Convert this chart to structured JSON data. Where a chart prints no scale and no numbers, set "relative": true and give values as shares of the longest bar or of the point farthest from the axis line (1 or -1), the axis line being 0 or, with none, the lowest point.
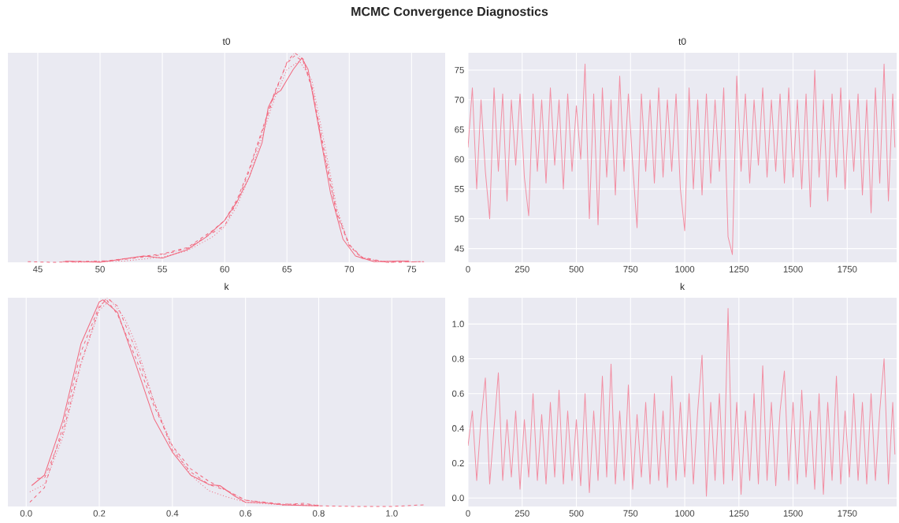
{
  "chart_data": [
    {
      "type": "line",
      "title": "t0",
      "annotations": [
        "MCMC Convergence Diagnostics"
      ],
      "relative": true,
      "grid": "x",
      "xlim": [
        42.6,
        77.7
      ],
      "xticks": [
        45,
        50,
        55,
        60,
        65,
        70,
        75
      ],
      "series": [
        {
          "color": "#f2697f",
          "line_style": "solid",
          "x": [
            47.2,
            50,
            53.5,
            55,
            57,
            58.5,
            60,
            61,
            62,
            63,
            63.5,
            64,
            64.5,
            65,
            65.5,
            66.2,
            66.7,
            67.5,
            68.5,
            69.5,
            70.5,
            72,
            74.8
          ],
          "values": [
            0.006,
            0,
            0.03,
            0.02,
            0.06,
            0.12,
            0.2,
            0.29,
            0.41,
            0.57,
            0.74,
            0.8,
            0.82,
            0.87,
            0.92,
            0.975,
            0.92,
            0.66,
            0.33,
            0.11,
            0.03,
            0.003,
            0.007
          ]
        },
        {
          "color": "#f2697f",
          "line_style": "dashed",
          "x": [
            44.2,
            46,
            50,
            55,
            57,
            59,
            60,
            61,
            62,
            63,
            64,
            65,
            65.6,
            66.3,
            67,
            68,
            69,
            70,
            71,
            73,
            76
          ],
          "values": [
            0.003,
            0,
            0.003,
            0.04,
            0.07,
            0.15,
            0.2,
            0.3,
            0.45,
            0.63,
            0.81,
            0.95,
            0.985,
            0.96,
            0.83,
            0.51,
            0.23,
            0.08,
            0.02,
            0,
            0.003
          ]
        },
        {
          "color": "#f2697f",
          "line_style": "dotted",
          "x": [
            48,
            52,
            55,
            57,
            59,
            60,
            61,
            62,
            63,
            64,
            65,
            66,
            67,
            68,
            69,
            70,
            71,
            72,
            75
          ],
          "values": [
            0,
            0.006,
            0.025,
            0.055,
            0.12,
            0.17,
            0.27,
            0.41,
            0.6,
            0.78,
            0.92,
            0.96,
            0.87,
            0.57,
            0.26,
            0.08,
            0.025,
            0.006,
            0.003
          ]
        },
        {
          "color": "#f2697f",
          "line_style": "dashdot",
          "x": [
            47,
            51,
            55,
            57,
            59,
            60,
            61,
            62,
            63,
            64,
            65,
            65.6,
            66.3,
            67,
            68,
            69,
            70,
            71,
            73,
            76
          ],
          "values": [
            0.003,
            0.007,
            0.036,
            0.066,
            0.14,
            0.175,
            0.29,
            0.44,
            0.62,
            0.8,
            0.955,
            1.0,
            0.97,
            0.84,
            0.53,
            0.24,
            0.085,
            0.025,
            0,
            0.003
          ]
        }
      ]
    },
    {
      "type": "line",
      "title": "t0",
      "grid": true,
      "xlim": [
        0,
        1978
      ],
      "xticks": [
        0,
        250,
        500,
        750,
        1000,
        1250,
        1500,
        1750
      ],
      "ylim": [
        42.7,
        77.9
      ],
      "yticks": [
        45,
        50,
        55,
        60,
        65,
        70,
        75
      ],
      "series": [
        {
          "color": "#f28fa3",
          "x": [
            0,
            20,
            40,
            60,
            80,
            100,
            120,
            140,
            160,
            180,
            200,
            220,
            240,
            260,
            280,
            300,
            320,
            340,
            360,
            380,
            400,
            420,
            440,
            460,
            480,
            500,
            520,
            540,
            560,
            580,
            600,
            620,
            640,
            660,
            680,
            700,
            720,
            740,
            760,
            780,
            800,
            820,
            840,
            860,
            880,
            900,
            920,
            940,
            960,
            980,
            1000,
            1020,
            1040,
            1060,
            1080,
            1100,
            1120,
            1140,
            1160,
            1180,
            1200,
            1220,
            1240,
            1260,
            1280,
            1300,
            1320,
            1340,
            1360,
            1380,
            1400,
            1420,
            1440,
            1460,
            1480,
            1500,
            1520,
            1540,
            1560,
            1580,
            1600,
            1620,
            1640,
            1660,
            1680,
            1700,
            1720,
            1740,
            1760,
            1780,
            1800,
            1820,
            1840,
            1860,
            1880,
            1900,
            1920,
            1940,
            1960,
            1970
          ],
          "values": [
            62,
            72,
            55,
            70,
            58,
            50,
            72,
            58,
            71,
            53,
            70,
            59,
            71,
            57,
            50.5,
            71,
            58,
            70,
            56,
            72,
            59,
            70,
            55,
            71,
            58,
            69,
            60,
            76,
            50,
            71,
            49,
            72,
            57,
            70,
            54,
            74,
            58,
            71,
            59,
            48.5,
            71,
            58,
            70,
            56,
            72,
            57,
            70,
            58,
            71,
            55,
            48,
            72,
            55,
            70,
            54,
            71,
            56,
            70,
            58,
            72,
            47,
            44,
            74,
            58,
            71,
            56,
            70,
            59,
            72,
            57,
            70,
            58,
            71,
            56,
            72,
            57,
            70,
            55,
            71,
            52,
            75,
            57,
            70,
            53,
            71,
            57,
            72,
            55,
            70,
            58,
            71,
            54,
            70,
            51,
            72,
            56,
            76,
            53,
            71,
            62
          ]
        }
      ]
    },
    {
      "type": "line",
      "title": "k",
      "relative": true,
      "grid": "x",
      "xlim": [
        -0.05,
        1.146
      ],
      "xticks": [
        {
          "value": 0,
          "label": "0.0"
        },
        {
          "value": 0.2,
          "label": "0.2"
        },
        {
          "value": 0.4,
          "label": "0.4"
        },
        {
          "value": 0.6,
          "label": "0.6"
        },
        {
          "value": 0.8,
          "label": "0.8"
        },
        {
          "value": 1.0,
          "label": "1.0"
        }
      ],
      "series": [
        {
          "color": "#f2697f",
          "line_style": "solid",
          "x": [
            0.015,
            0.05,
            0.1,
            0.15,
            0.2,
            0.21,
            0.25,
            0.3,
            0.35,
            0.4,
            0.45,
            0.5,
            0.53,
            0.57,
            0.6,
            0.65,
            0.7,
            0.8
          ],
          "values": [
            0.1,
            0.15,
            0.41,
            0.78,
            0.98,
            0.99,
            0.93,
            0.68,
            0.42,
            0.26,
            0.15,
            0.105,
            0.1,
            0.05,
            0.02,
            0.018,
            0.008,
            0.003
          ]
        },
        {
          "color": "#f2697f",
          "line_style": "dashed",
          "x": [
            0.01,
            0.05,
            0.1,
            0.15,
            0.2,
            0.22,
            0.25,
            0.3,
            0.35,
            0.4,
            0.45,
            0.5,
            0.55,
            0.6,
            0.7,
            0.76,
            0.8,
            0.9,
            1.0,
            1.09
          ],
          "values": [
            0.02,
            0.09,
            0.38,
            0.74,
            0.96,
            0.99,
            0.92,
            0.71,
            0.48,
            0.29,
            0.18,
            0.12,
            0.075,
            0.03,
            0.008,
            0.015,
            0.003,
            0,
            0,
            0.008
          ]
        },
        {
          "color": "#f2697f",
          "line_style": "dotted",
          "x": [
            0.01,
            0.05,
            0.1,
            0.15,
            0.2,
            0.23,
            0.27,
            0.3,
            0.35,
            0.4,
            0.45,
            0.5,
            0.55,
            0.6,
            0.7,
            0.8
          ],
          "values": [
            0.07,
            0.105,
            0.33,
            0.68,
            0.94,
            0.99,
            0.9,
            0.78,
            0.5,
            0.29,
            0.15,
            0.075,
            0.045,
            0.02,
            0.008,
            0.003
          ]
        },
        {
          "color": "#f2697f",
          "line_style": "dashdot",
          "x": [
            0.03,
            0.05,
            0.1,
            0.15,
            0.2,
            0.22,
            0.25,
            0.3,
            0.35,
            0.4,
            0.45,
            0.5,
            0.55,
            0.6,
            0.7,
            0.8
          ],
          "values": [
            0.135,
            0.135,
            0.35,
            0.69,
            0.95,
            1.0,
            0.96,
            0.75,
            0.5,
            0.27,
            0.165,
            0.105,
            0.075,
            0.03,
            0.012,
            0.006
          ]
        }
      ]
    },
    {
      "type": "line",
      "title": "k",
      "grid": true,
      "xlim": [
        0,
        1978
      ],
      "xticks": [
        0,
        250,
        500,
        750,
        1000,
        1250,
        1500,
        1750
      ],
      "ylim": [
        -0.049,
        1.151
      ],
      "yticks": [
        {
          "value": 0,
          "label": "0.0"
        },
        {
          "value": 0.2,
          "label": "0.2"
        },
        {
          "value": 0.4,
          "label": "0.4"
        },
        {
          "value": 0.6,
          "label": "0.6"
        },
        {
          "value": 0.8,
          "label": "0.8"
        },
        {
          "value": 1.0,
          "label": "1.0"
        }
      ],
      "series": [
        {
          "color": "#f28fa3",
          "x": [
            0,
            20,
            40,
            60,
            80,
            100,
            120,
            140,
            160,
            180,
            200,
            220,
            240,
            260,
            280,
            300,
            320,
            340,
            360,
            380,
            400,
            420,
            440,
            460,
            480,
            500,
            520,
            540,
            560,
            580,
            600,
            620,
            640,
            660,
            680,
            700,
            720,
            740,
            760,
            780,
            800,
            820,
            840,
            860,
            880,
            900,
            920,
            940,
            960,
            980,
            1000,
            1020,
            1040,
            1060,
            1080,
            1100,
            1120,
            1140,
            1160,
            1180,
            1200,
            1220,
            1240,
            1260,
            1280,
            1300,
            1320,
            1340,
            1360,
            1380,
            1400,
            1420,
            1440,
            1460,
            1480,
            1500,
            1520,
            1540,
            1560,
            1580,
            1600,
            1620,
            1640,
            1660,
            1680,
            1700,
            1720,
            1740,
            1760,
            1780,
            1800,
            1820,
            1840,
            1860,
            1880,
            1900,
            1920,
            1940,
            1960,
            1970
          ],
          "values": [
            0.3,
            0.5,
            0.1,
            0.45,
            0.69,
            0.08,
            0.4,
            0.72,
            0.1,
            0.45,
            0.12,
            0.5,
            0.05,
            0.45,
            0.12,
            0.6,
            0.1,
            0.48,
            0.08,
            0.55,
            0.12,
            0.62,
            0.08,
            0.5,
            0.1,
            0.45,
            0.07,
            0.6,
            0.03,
            0.5,
            0.1,
            0.7,
            0.12,
            0.77,
            0.08,
            0.5,
            0.1,
            0.65,
            0.05,
            0.48,
            0.12,
            0.55,
            0.08,
            0.6,
            0.1,
            0.5,
            0.06,
            0.7,
            0.1,
            0.55,
            0.12,
            0.6,
            0.08,
            0.5,
            0.82,
            0.01,
            0.55,
            0.1,
            0.6,
            0.08,
            1.09,
            0.1,
            0.55,
            0.02,
            0.5,
            0.1,
            0.6,
            0.08,
            0.76,
            0.1,
            0.55,
            0.07,
            0.5,
            0.73,
            0.1,
            0.55,
            0.08,
            0.62,
            0.12,
            0.5,
            0.05,
            0.6,
            0.02,
            0.55,
            0.1,
            0.7,
            0.08,
            0.5,
            0.12,
            0.6,
            0.1,
            0.55,
            0.08,
            0.6,
            0.1,
            0.5,
            0.8,
            0.08,
            0.55,
            0.25
          ]
        }
      ]
    }
  ]
}
